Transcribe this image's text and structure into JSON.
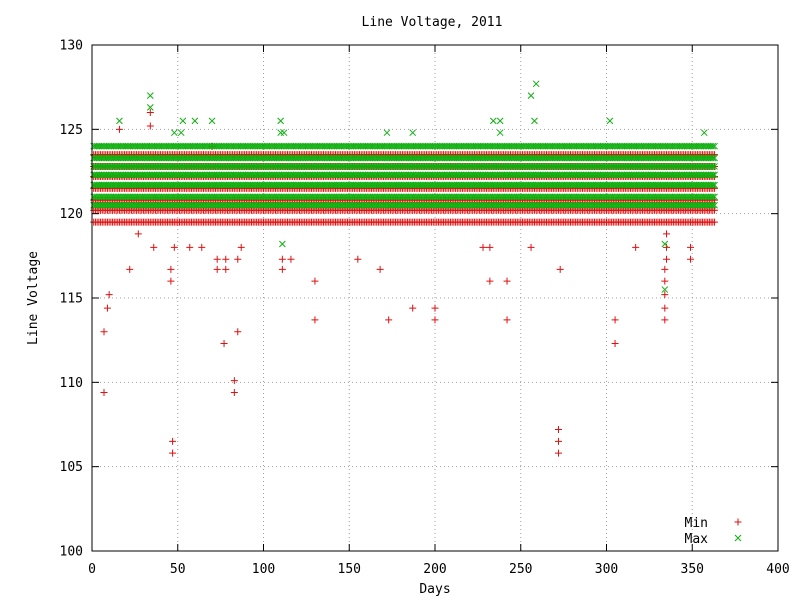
{
  "chart_data": {
    "type": "scatter",
    "title": "Line Voltage, 2011",
    "xlabel": "Days",
    "ylabel": "Line Voltage",
    "xlim": [
      0,
      400
    ],
    "ylim": [
      100,
      130
    ],
    "xticks": [
      0,
      50,
      100,
      150,
      200,
      250,
      300,
      350,
      400
    ],
    "yticks": [
      100,
      105,
      110,
      115,
      120,
      125,
      130
    ],
    "xtick_labels": [
      "0",
      "50",
      "100",
      "150",
      "200",
      "250",
      "300",
      "350",
      "400"
    ],
    "ytick_labels": [
      "100",
      "105",
      "110",
      "115",
      "120",
      "125",
      "130"
    ],
    "grid": true,
    "legend_position": "bottom-right",
    "day_range": [
      1,
      363
    ],
    "series": [
      {
        "name": "Min",
        "marker": "+",
        "color": "#e01010",
        "dense_levels": [
          119.5,
          120.2,
          120.8,
          121.5,
          122.2,
          122.8,
          123.5
        ],
        "outliers": [
          [
            7,
            109.4
          ],
          [
            7,
            113.0
          ],
          [
            9,
            114.4
          ],
          [
            10,
            115.2
          ],
          [
            16,
            125.0
          ],
          [
            22,
            116.7
          ],
          [
            27,
            118.8
          ],
          [
            34,
            125.2
          ],
          [
            34,
            126.0
          ],
          [
            36,
            118.0
          ],
          [
            46,
            116.0
          ],
          [
            46,
            116.7
          ],
          [
            47,
            105.8
          ],
          [
            47,
            106.5
          ],
          [
            48,
            118.0
          ],
          [
            57,
            118.0
          ],
          [
            64,
            118.0
          ],
          [
            70,
            124.0
          ],
          [
            73,
            116.7
          ],
          [
            73,
            117.3
          ],
          [
            77,
            112.3
          ],
          [
            78,
            116.7
          ],
          [
            78,
            117.3
          ],
          [
            83,
            109.4
          ],
          [
            83,
            110.1
          ],
          [
            85,
            113.0
          ],
          [
            85,
            117.3
          ],
          [
            87,
            118.0
          ],
          [
            111,
            116.7
          ],
          [
            111,
            117.3
          ],
          [
            116,
            117.3
          ],
          [
            130,
            113.7
          ],
          [
            130,
            116.0
          ],
          [
            155,
            117.3
          ],
          [
            168,
            116.7
          ],
          [
            173,
            113.7
          ],
          [
            187,
            114.4
          ],
          [
            200,
            113.7
          ],
          [
            200,
            114.4
          ],
          [
            228,
            118.0
          ],
          [
            232,
            116.0
          ],
          [
            232,
            118.0
          ],
          [
            242,
            113.7
          ],
          [
            242,
            116.0
          ],
          [
            256,
            118.0
          ],
          [
            272,
            105.8
          ],
          [
            272,
            106.5
          ],
          [
            272,
            107.2
          ],
          [
            273,
            116.7
          ],
          [
            305,
            112.3
          ],
          [
            305,
            113.7
          ],
          [
            317,
            118.0
          ],
          [
            334,
            113.7
          ],
          [
            334,
            114.4
          ],
          [
            334,
            115.2
          ],
          [
            334,
            116.0
          ],
          [
            334,
            116.7
          ],
          [
            335,
            117.3
          ],
          [
            335,
            118.0
          ],
          [
            335,
            118.8
          ],
          [
            349,
            117.3
          ],
          [
            349,
            118.0
          ]
        ]
      },
      {
        "name": "Max",
        "marker": "x",
        "color": "#10b010",
        "dense_levels": [
          120.5,
          121.0,
          121.7,
          122.3,
          122.8,
          123.3,
          124.0
        ],
        "outliers": [
          [
            16,
            125.5
          ],
          [
            34,
            126.3
          ],
          [
            34,
            127.0
          ],
          [
            48,
            124.8
          ],
          [
            52,
            124.8
          ],
          [
            53,
            125.5
          ],
          [
            60,
            125.5
          ],
          [
            70,
            125.5
          ],
          [
            110,
            125.5
          ],
          [
            110,
            124.8
          ],
          [
            112,
            124.8
          ],
          [
            111,
            118.2
          ],
          [
            172,
            124.8
          ],
          [
            187,
            124.8
          ],
          [
            234,
            125.5
          ],
          [
            238,
            125.5
          ],
          [
            238,
            124.8
          ],
          [
            256,
            127.0
          ],
          [
            258,
            125.5
          ],
          [
            259,
            127.7
          ],
          [
            302,
            125.5
          ],
          [
            334,
            118.2
          ],
          [
            334,
            115.5
          ],
          [
            357,
            124.8
          ]
        ]
      }
    ]
  }
}
